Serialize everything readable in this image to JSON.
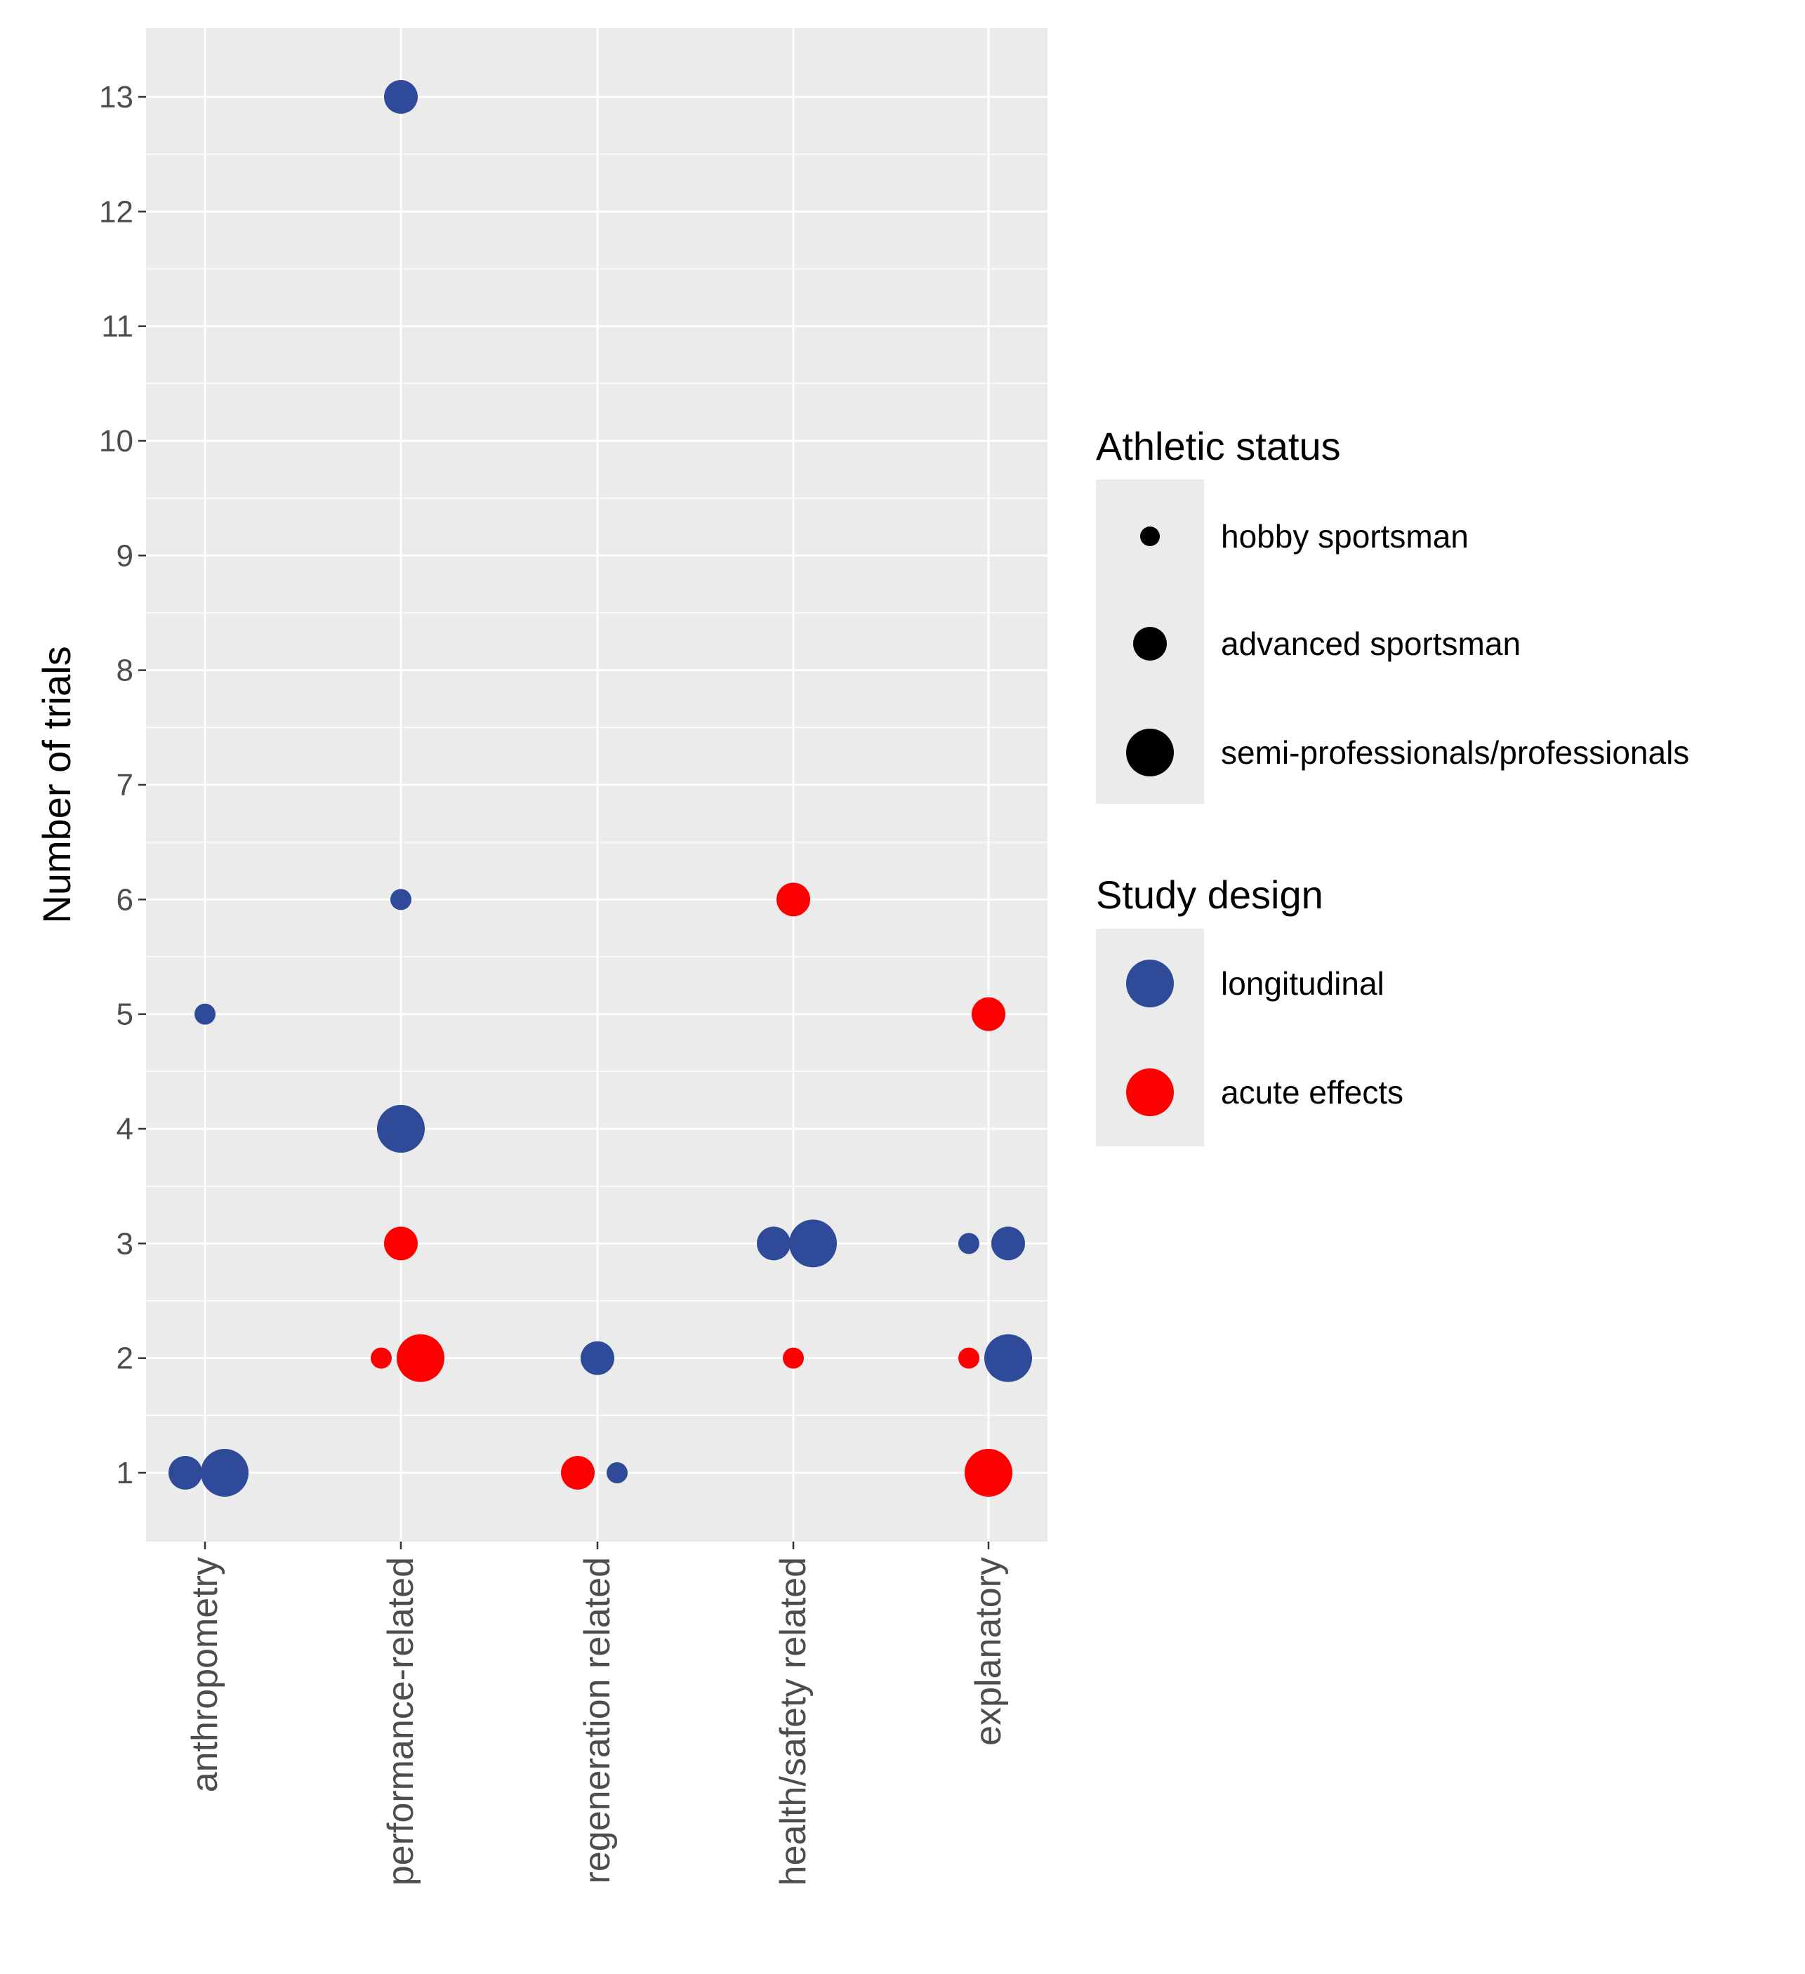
{
  "chart_data": {
    "type": "scatter",
    "title": "",
    "xlabel": "",
    "ylabel": "Number of trials",
    "categories": [
      "anthropometry",
      "performance-related",
      "regeneration related",
      "health/safety related",
      "explanatory"
    ],
    "y_ticks": [
      1,
      2,
      3,
      4,
      5,
      6,
      7,
      8,
      9,
      10,
      11,
      12,
      13
    ],
    "ylim": [
      0.4,
      13.6
    ],
    "grid": true,
    "legend": {
      "placement": "right",
      "size_title": "Athletic status",
      "size_levels": [
        "hobby sportsman",
        "advanced sportsman",
        "semi-professionals/professionals"
      ],
      "color_title": "Study design",
      "color_levels": [
        "longitudinal",
        "acute effects"
      ]
    },
    "colors": {
      "longitudinal": "#2e4a98",
      "acute effects": "#ff0000",
      "legend_key": "#000000",
      "panel_bg": "#ebebeb",
      "grid": "#ffffff"
    },
    "points": [
      {
        "category": "anthropometry",
        "status": "advanced sportsman",
        "design": "longitudinal",
        "y": 1
      },
      {
        "category": "anthropometry",
        "status": "semi-professionals/professionals",
        "design": "longitudinal",
        "y": 1
      },
      {
        "category": "anthropometry",
        "status": "hobby sportsman",
        "design": "longitudinal",
        "y": 5
      },
      {
        "category": "performance-related",
        "status": "advanced sportsman",
        "design": "longitudinal",
        "y": 13
      },
      {
        "category": "performance-related",
        "status": "hobby sportsman",
        "design": "longitudinal",
        "y": 6
      },
      {
        "category": "performance-related",
        "status": "semi-professionals/professionals",
        "design": "longitudinal",
        "y": 4
      },
      {
        "category": "performance-related",
        "status": "advanced sportsman",
        "design": "acute effects",
        "y": 3
      },
      {
        "category": "performance-related",
        "status": "hobby sportsman",
        "design": "acute effects",
        "y": 2
      },
      {
        "category": "performance-related",
        "status": "semi-professionals/professionals",
        "design": "acute effects",
        "y": 2
      },
      {
        "category": "regeneration related",
        "status": "advanced sportsman",
        "design": "longitudinal",
        "y": 2
      },
      {
        "category": "regeneration related",
        "status": "hobby sportsman",
        "design": "longitudinal",
        "y": 1
      },
      {
        "category": "regeneration related",
        "status": "advanced sportsman",
        "design": "acute effects",
        "y": 1
      },
      {
        "category": "health/safety related",
        "status": "advanced sportsman",
        "design": "acute effects",
        "y": 6
      },
      {
        "category": "health/safety related",
        "status": "advanced sportsman",
        "design": "longitudinal",
        "y": 3
      },
      {
        "category": "health/safety related",
        "status": "semi-professionals/professionals",
        "design": "longitudinal",
        "y": 3
      },
      {
        "category": "health/safety related",
        "status": "hobby sportsman",
        "design": "acute effects",
        "y": 2
      },
      {
        "category": "explanatory",
        "status": "advanced sportsman",
        "design": "acute effects",
        "y": 5
      },
      {
        "category": "explanatory",
        "status": "hobby sportsman",
        "design": "longitudinal",
        "y": 3
      },
      {
        "category": "explanatory",
        "status": "advanced sportsman",
        "design": "longitudinal",
        "y": 3
      },
      {
        "category": "explanatory",
        "status": "hobby sportsman",
        "design": "acute effects",
        "y": 2
      },
      {
        "category": "explanatory",
        "status": "semi-professionals/professionals",
        "design": "longitudinal",
        "y": 2
      },
      {
        "category": "explanatory",
        "status": "semi-professionals/professionals",
        "design": "acute effects",
        "y": 1
      }
    ]
  }
}
